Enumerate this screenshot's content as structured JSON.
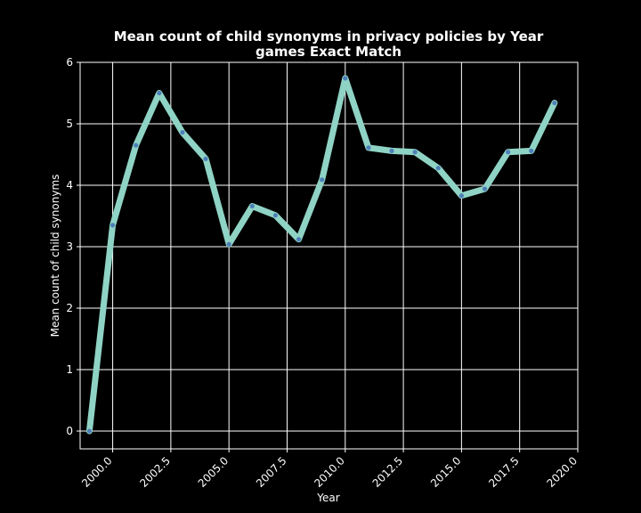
{
  "chart_data": {
    "type": "line",
    "title": "Mean count of child synonyms in privacy policies by Year",
    "subtitle": "games Exact Match",
    "xlabel": "Year",
    "ylabel": "Mean count of child synonyms",
    "xlim": [
      1998.6,
      2020.0
    ],
    "ylim": [
      -0.29,
      6.0
    ],
    "xticks": [
      2000.0,
      2002.5,
      2005.0,
      2007.5,
      2010.0,
      2012.5,
      2015.0,
      2017.5,
      2020.0
    ],
    "xtick_labels": [
      "2000.0",
      "2002.5",
      "2005.0",
      "2007.5",
      "2010.0",
      "2012.5",
      "2015.0",
      "2017.5",
      "2020.0"
    ],
    "yticks": [
      0,
      1,
      2,
      3,
      4,
      5,
      6
    ],
    "ytick_labels": [
      "0",
      "1",
      "2",
      "3",
      "4",
      "5",
      "6"
    ],
    "grid": true,
    "line_color": "#8fd3c5",
    "marker_color": "#4f7fb8",
    "background_color": "#000000",
    "series": [
      {
        "x": [
          1999,
          2000,
          2001,
          2002,
          2003,
          2004,
          2005,
          2006,
          2007,
          2008,
          2009,
          2010,
          2011,
          2012,
          2013,
          2014,
          2015,
          2016,
          2017,
          2018,
          2019
        ],
        "values": [
          0.0,
          3.35,
          4.65,
          5.5,
          4.86,
          4.43,
          3.04,
          3.66,
          3.51,
          3.12,
          4.09,
          5.74,
          4.61,
          4.56,
          4.54,
          4.28,
          3.83,
          3.94,
          4.54,
          4.56,
          5.34
        ]
      }
    ]
  }
}
